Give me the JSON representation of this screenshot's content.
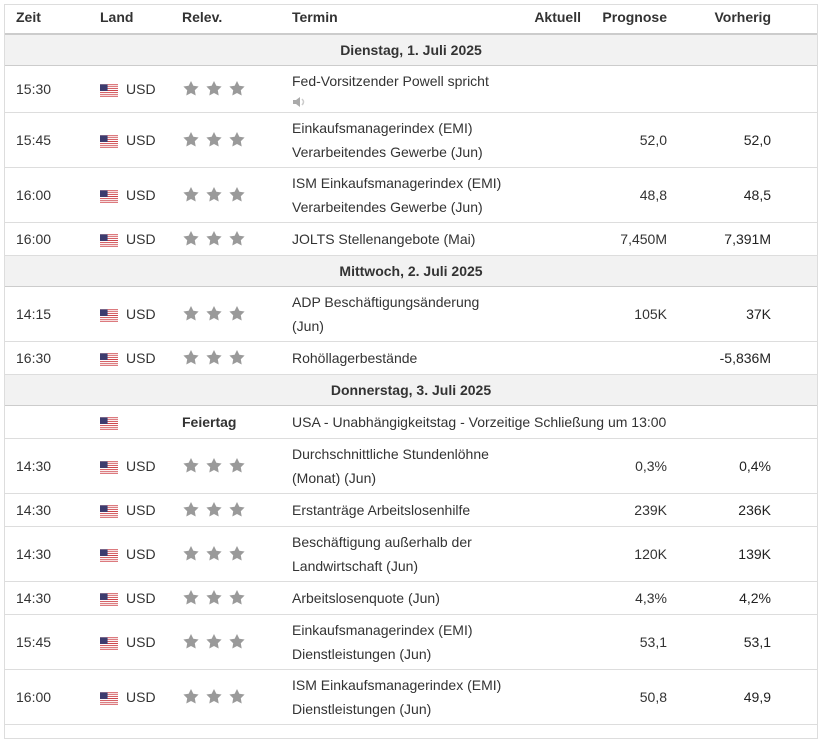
{
  "header": {
    "columns": [
      "Zeit",
      "Land",
      "Relev.",
      "Termin",
      "Aktuell",
      "Prognose",
      "Vorherig"
    ]
  },
  "days": [
    {
      "date": "Dienstag, 1. Juli 2025",
      "events": [
        {
          "time": "15:30",
          "currency": "USD",
          "event": "Fed-Vorsitzender Powell spricht",
          "speech": true
        },
        {
          "time": "15:45",
          "currency": "USD",
          "event": "Einkaufsmanagerindex (EMI) Verarbeitendes Gewerbe (Jun)",
          "forecast": "52,0",
          "previous": "52,0"
        },
        {
          "time": "16:00",
          "currency": "USD",
          "event": "ISM Einkaufsmanagerindex (EMI) Verarbeitendes Gewerbe (Jun)",
          "forecast": "48,8",
          "previous": "48,5"
        },
        {
          "time": "16:00",
          "currency": "USD",
          "event": "JOLTS Stellenangebote (Mai)",
          "forecast": "7,450M",
          "previous": "7,391M"
        }
      ]
    },
    {
      "date": "Mittwoch, 2. Juli 2025",
      "events": [
        {
          "time": "14:15",
          "currency": "USD",
          "event": "ADP Beschäftigungsänderung (Jun)",
          "forecast": "105K",
          "previous": "37K"
        },
        {
          "time": "16:30",
          "currency": "USD",
          "event": "Rohöllagerbestände",
          "previous": "-5,836M"
        }
      ]
    },
    {
      "date": "Donnerstag, 3. Juli 2025",
      "events": [
        {
          "holiday": "Feiertag",
          "event": "USA - Unabhängigkeitstag - Vorzeitige Schließung um 13:00"
        },
        {
          "time": "14:30",
          "currency": "USD",
          "event": "Durchschnittliche Stundenlöhne (Monat) (Jun)",
          "forecast": "0,3%",
          "previous": "0,4%"
        },
        {
          "time": "14:30",
          "currency": "USD",
          "event": "Erstanträge Arbeitslosenhilfe",
          "forecast": "239K",
          "previous": "236K"
        },
        {
          "time": "14:30",
          "currency": "USD",
          "event": "Beschäftigung außerhalb der Landwirtschaft (Jun)",
          "forecast": "120K",
          "previous": "139K"
        },
        {
          "time": "14:30",
          "currency": "USD",
          "event": "Arbeitslosenquote (Jun)",
          "forecast": "4,3%",
          "previous": "4,2%"
        },
        {
          "time": "15:45",
          "currency": "USD",
          "event": "Einkaufsmanagerindex (EMI) Dienstleistungen (Jun)",
          "forecast": "53,1",
          "previous": "53,1"
        },
        {
          "time": "16:00",
          "currency": "USD",
          "event": "ISM Einkaufsmanagerindex (EMI) Dienstleistungen (Jun)",
          "forecast": "50,8",
          "previous": "49,9"
        }
      ]
    }
  ]
}
